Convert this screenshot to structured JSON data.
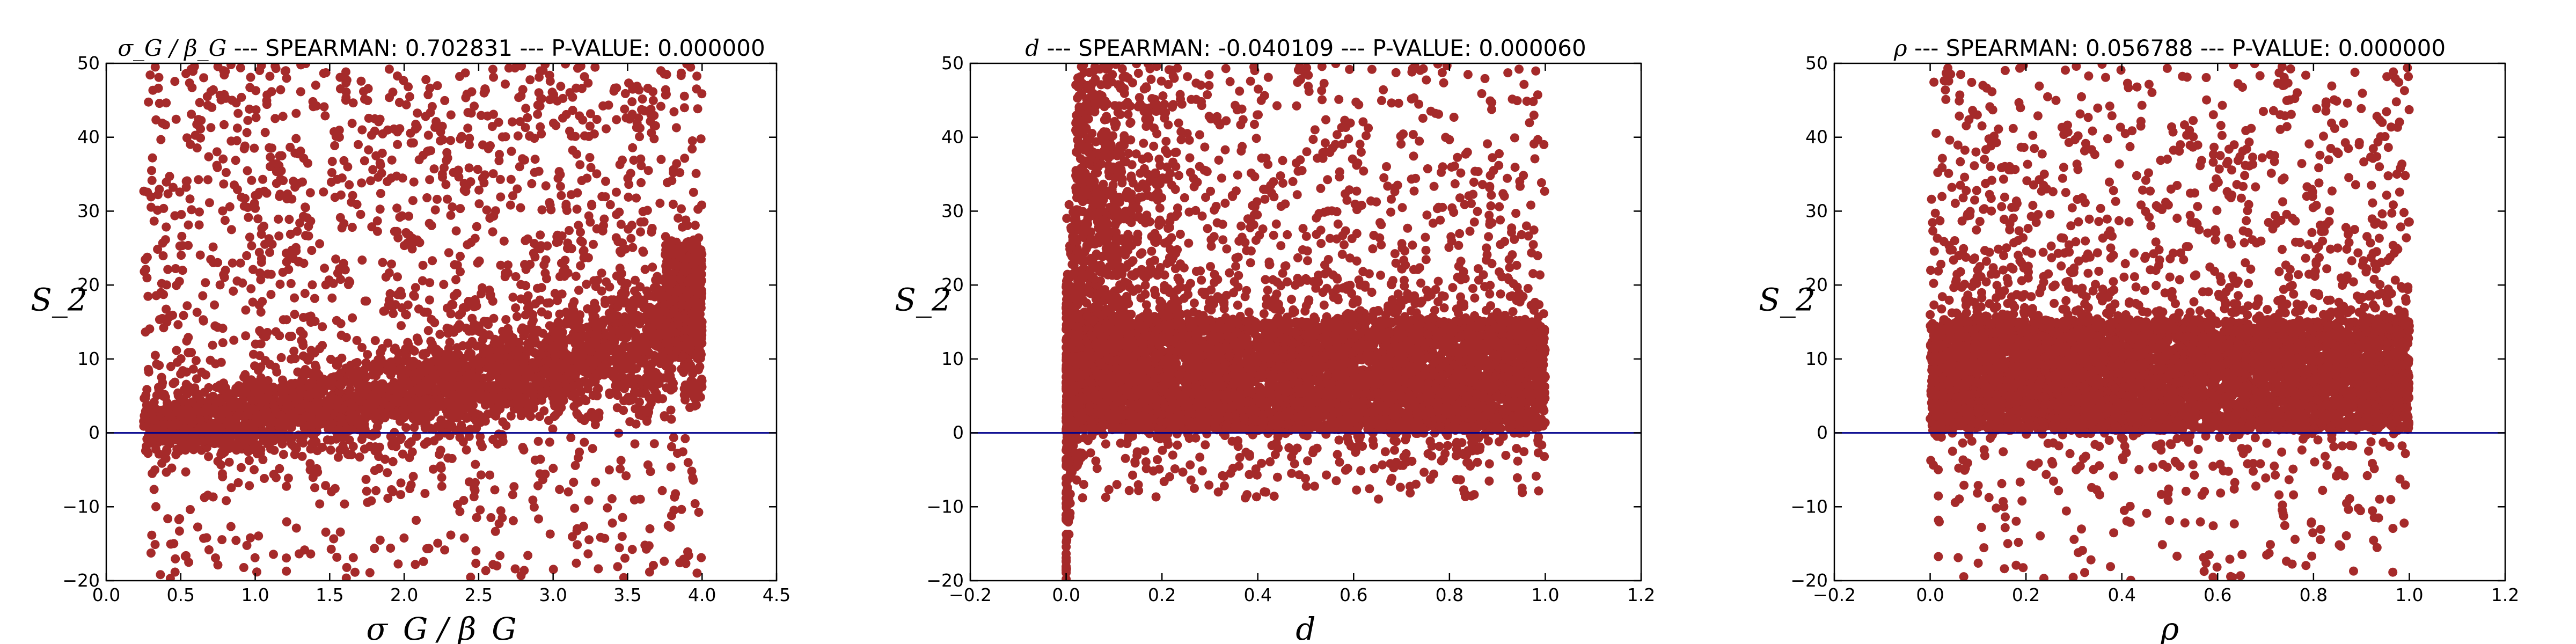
{
  "colors": {
    "points": "#a52a2a",
    "zero_line": "#00008b",
    "axes": "#000000"
  },
  "chart_data": [
    {
      "type": "scatter",
      "title_symbol": "σ_G / β_G",
      "title_rest": " --- SPEARMAN: 0.702831 --- P-VALUE: 0.000000",
      "xlabel": "σ_G / β_G",
      "ylabel": "S_2",
      "xlim": [
        0.0,
        4.5
      ],
      "ylim": [
        -20,
        50
      ],
      "xticks": [
        "0.0",
        "0.5",
        "1.0",
        "1.5",
        "2.0",
        "2.5",
        "3.0",
        "3.5",
        "4.0",
        "4.5"
      ],
      "yticks": [
        "−20",
        "−10",
        "0",
        "10",
        "20",
        "30",
        "40",
        "50"
      ],
      "reference_line_y": 0,
      "x_range_of_points": [
        0.25,
        4.0
      ],
      "trend": "rising from about 0 at x=0.25 to about 15 at x=4.0"
    },
    {
      "type": "scatter",
      "title_symbol": "d",
      "title_rest": " --- SPEARMAN: -0.040109 --- P-VALUE: 0.000060",
      "xlabel": "d",
      "ylabel": "S_2",
      "xlim": [
        -0.2,
        1.2
      ],
      "ylim": [
        -20,
        50
      ],
      "xticks": [
        "−0.2",
        "0.0",
        "0.2",
        "0.4",
        "0.6",
        "0.8",
        "1.0",
        "1.2"
      ],
      "yticks": [
        "−20",
        "−10",
        "0",
        "10",
        "20",
        "30",
        "40",
        "50"
      ],
      "reference_line_y": 0,
      "x_range_of_points": [
        0.0,
        1.0
      ],
      "trend": "dense band between about 0 and 15 across all x, tail dropping below -10 near x=0"
    },
    {
      "type": "scatter",
      "title_symbol": "ρ",
      "title_rest": " --- SPEARMAN: 0.056788 --- P-VALUE: 0.000000",
      "xlabel": "ρ",
      "ylabel": "S_2",
      "xlim": [
        -0.2,
        1.2
      ],
      "ylim": [
        -20,
        50
      ],
      "xticks": [
        "−0.2",
        "0.0",
        "0.2",
        "0.4",
        "0.6",
        "0.8",
        "1.0",
        "1.2"
      ],
      "yticks": [
        "−20",
        "−10",
        "0",
        "10",
        "20",
        "30",
        "40",
        "50"
      ],
      "reference_line_y": 0,
      "x_range_of_points": [
        0.0,
        1.0
      ],
      "trend": "dense band between about 0 and 15 across all x, scattered outliers up to 50 and down to -20"
    }
  ]
}
